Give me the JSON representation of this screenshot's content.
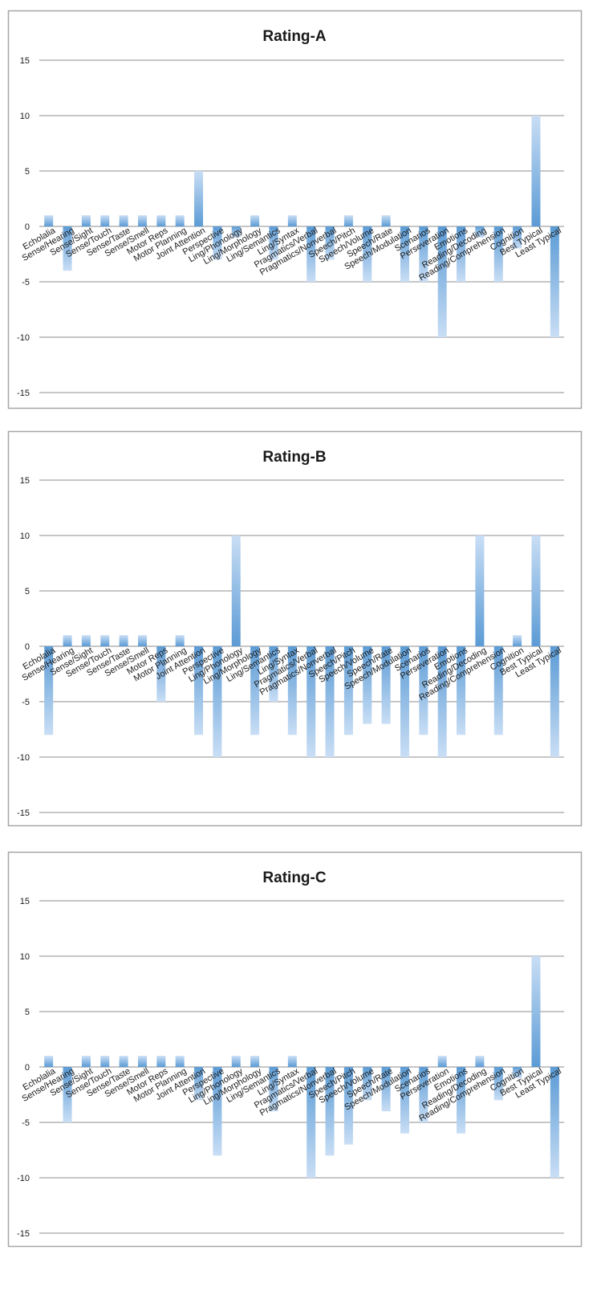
{
  "categories": [
    "Echolalia",
    "Sense/Hearing",
    "Sense/Sight",
    "Sense/Touch",
    "Sense/Taste",
    "Sense/Smell",
    "Motor Reps",
    "Motor Planning",
    "Joint Attention",
    "Perspective",
    "Ling/Phonology",
    "Ling/Morphology",
    "Ling/Semantics",
    "Ling/Syntax",
    "Pragmatics/Verbal",
    "Pragmatics/Nonverbal",
    "Speech/Pitch",
    "Speech/Volume",
    "Speech/Rate",
    "Speech/Modulation",
    "Scenarios",
    "Perseveration",
    "Emotions",
    "Reading/Decoding",
    "Reading/Comprehension",
    "Cognition",
    "Best Typical",
    "Least Typical"
  ],
  "colors": {
    "bar": "#5b9bd5",
    "bar_light": "#c9def5",
    "grid": "#8c8c8c",
    "frame": "#a6a6a6"
  },
  "chart_data": [
    {
      "type": "bar",
      "title": "Rating-A",
      "categories": [
        "Echolalia",
        "Sense/Hearing",
        "Sense/Sight",
        "Sense/Touch",
        "Sense/Taste",
        "Sense/Smell",
        "Motor Reps",
        "Motor Planning",
        "Joint Attention",
        "Perspective",
        "Ling/Phonology",
        "Ling/Morphology",
        "Ling/Semantics",
        "Ling/Syntax",
        "Pragmatics/Verbal",
        "Pragmatics/Nonverbal",
        "Speech/Pitch",
        "Speech/Volume",
        "Speech/Rate",
        "Speech/Modulation",
        "Scenarios",
        "Perseveration",
        "Emotions",
        "Reading/Decoding",
        "Reading/Comprehension",
        "Cognition",
        "Best Typical",
        "Least Typical"
      ],
      "values": [
        1,
        -4,
        1,
        1,
        1,
        1,
        1,
        1,
        5,
        -3,
        -1,
        1,
        -3,
        1,
        -5,
        -3,
        1,
        -5,
        1,
        -5,
        -5,
        -10,
        -5,
        -1,
        -5,
        -2,
        10,
        -10
      ],
      "ylim": [
        -15,
        15
      ],
      "yticks": [
        -15,
        -10,
        -5,
        0,
        5,
        10,
        15
      ],
      "ytick_labels": [
        "-15",
        "-10",
        "-5",
        "0",
        "5",
        "10",
        "15"
      ],
      "grid": true,
      "legend": "none"
    },
    {
      "type": "bar",
      "title": "Rating-B",
      "categories": [
        "Echolalia",
        "Sense/Hearing",
        "Sense/Sight",
        "Sense/Touch",
        "Sense/Taste",
        "Sense/Smell",
        "Motor Reps",
        "Motor Planning",
        "Joint Attention",
        "Perspective",
        "Ling/Phonology",
        "Ling/Morphology",
        "Ling/Semantics",
        "Ling/Syntax",
        "Pragmatics/Verbal",
        "Pragmatics/Nonverbal",
        "Speech/Pitch",
        "Speech/Volume",
        "Speech/Rate",
        "Speech/Modulation",
        "Scenarios",
        "Perseveration",
        "Emotions",
        "Reading/Decoding",
        "Reading/Comprehension",
        "Cognition",
        "Best Typical",
        "Least Typical"
      ],
      "values": [
        -8,
        1,
        1,
        1,
        1,
        1,
        -5,
        1,
        -8,
        -10,
        10,
        -8,
        -5,
        -8,
        -10,
        -10,
        -8,
        -7,
        -7,
        -10,
        -8,
        -10,
        -8,
        10,
        -8,
        1,
        10,
        -10
      ],
      "ylim": [
        -15,
        15
      ],
      "yticks": [
        -15,
        -10,
        -5,
        0,
        5,
        10,
        15
      ],
      "ytick_labels": [
        "-15",
        "-10",
        "-5",
        "0",
        "5",
        "10",
        "15"
      ],
      "grid": true,
      "legend": "none"
    },
    {
      "type": "bar",
      "title": "Rating-C",
      "categories": [
        "Echolalia",
        "Sense/Hearing",
        "Sense/Sight",
        "Sense/Touch",
        "Sense/Taste",
        "Sense/Smell",
        "Motor Reps",
        "Motor Planning",
        "Joint Attention",
        "Perspective",
        "Ling/Phonology",
        "Ling/Morphology",
        "Ling/Semantics",
        "Ling/Syntax",
        "Pragmatics/Verbal",
        "Pragmatics/Nonverbal",
        "Speech/Pitch",
        "Speech/Volume",
        "Speech/Rate",
        "Speech/Modulation",
        "Scenarios",
        "Perseveration",
        "Emotions",
        "Reading/Decoding",
        "Reading/Comprehension",
        "Cognition",
        "Best Typical",
        "Least Typical"
      ],
      "values": [
        1,
        -5,
        1,
        1,
        1,
        1,
        1,
        1,
        -3,
        -8,
        1,
        1,
        -4,
        1,
        -10,
        -8,
        -7,
        -3,
        -4,
        -6,
        -5,
        1,
        -6,
        1,
        -3,
        -1,
        10,
        -10
      ],
      "ylim": [
        -15,
        15
      ],
      "yticks": [
        -15,
        -10,
        -5,
        0,
        5,
        10,
        15
      ],
      "ytick_labels": [
        "-15",
        "-10",
        "-5",
        "0",
        "5",
        "10",
        "15"
      ],
      "grid": true,
      "legend": "none"
    }
  ]
}
